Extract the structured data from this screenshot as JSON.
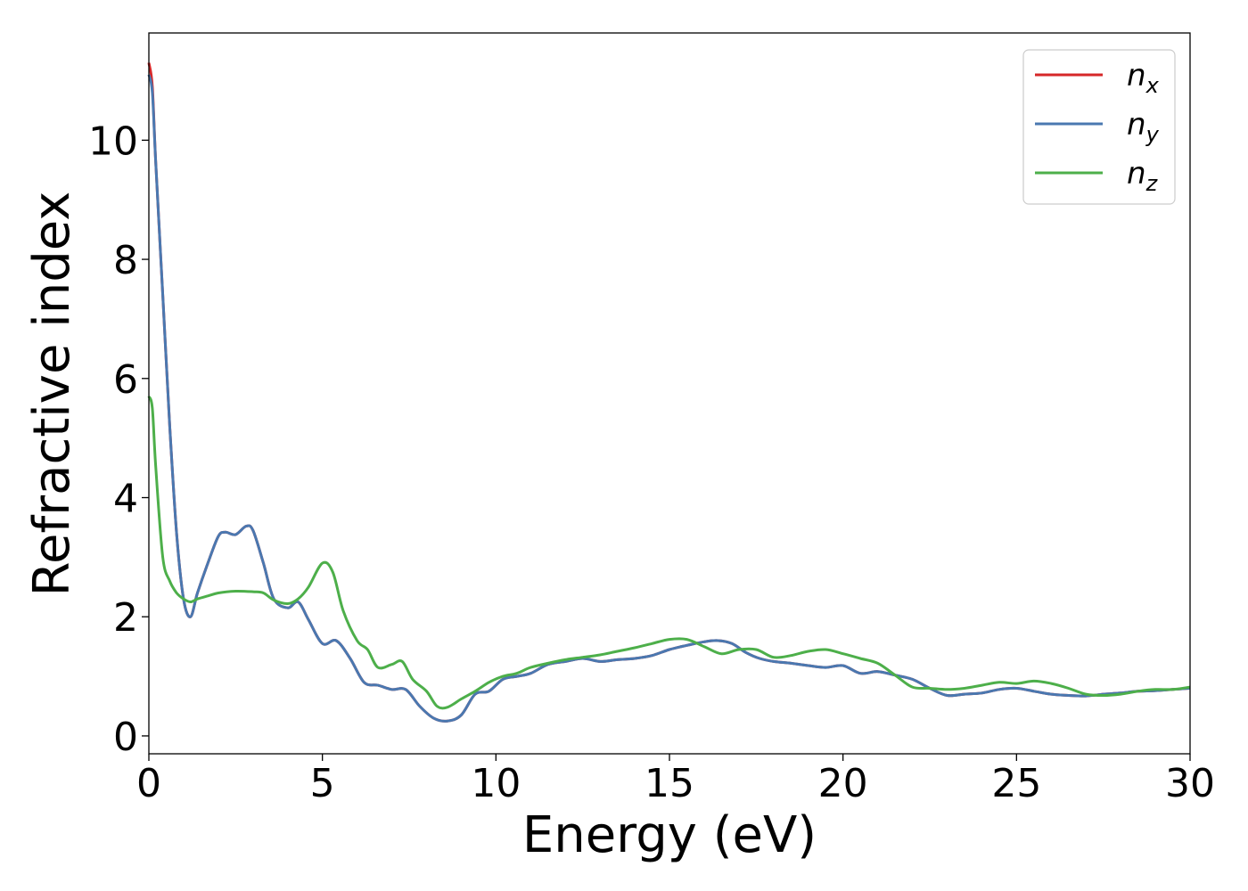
{
  "chart_data": {
    "type": "line",
    "xlabel": "Energy (eV)",
    "ylabel": "Refractive index",
    "xlim": [
      0,
      30
    ],
    "ylim": [
      -0.3,
      11.8
    ],
    "xticks": [
      0,
      5,
      10,
      15,
      20,
      25,
      30
    ],
    "yticks": [
      0,
      2,
      4,
      6,
      8,
      10
    ],
    "xtick_labels": [
      "0",
      "5",
      "10",
      "15",
      "20",
      "25",
      "30"
    ],
    "ytick_labels": [
      "0",
      "2",
      "4",
      "6",
      "8",
      "10"
    ],
    "grid": false,
    "legend_position": "top-right",
    "series": [
      {
        "name": "n",
        "sub": "x",
        "color": "#d62728",
        "x": [
          0,
          0.1,
          0.2,
          0.4,
          0.6,
          0.8,
          1.0,
          1.2,
          1.4,
          1.7,
          2.0,
          2.2,
          2.5,
          2.8,
          3.0,
          3.3,
          3.6,
          4.0,
          4.3,
          4.6,
          5.0,
          5.4,
          5.8,
          6.2,
          6.6,
          7.0,
          7.4,
          7.8,
          8.2,
          8.6,
          9.0,
          9.4,
          9.8,
          10.2,
          10.6,
          11.0,
          11.5,
          12.0,
          12.5,
          13.0,
          13.5,
          14.0,
          14.5,
          15.0,
          15.5,
          16.0,
          16.4,
          16.8,
          17.2,
          17.6,
          18.0,
          18.5,
          19.0,
          19.5,
          20.0,
          20.5,
          21.0,
          21.5,
          22.0,
          22.5,
          23.0,
          23.5,
          24.0,
          24.5,
          25.0,
          25.5,
          26.0,
          26.5,
          27.0,
          27.5,
          28.0,
          28.5,
          29.0,
          29.5,
          30.0
        ],
        "values": [
          11.3,
          10.9,
          9.6,
          7.4,
          5.2,
          3.4,
          2.3,
          2.0,
          2.4,
          2.9,
          3.35,
          3.42,
          3.38,
          3.52,
          3.45,
          2.9,
          2.3,
          2.15,
          2.25,
          1.95,
          1.55,
          1.6,
          1.3,
          0.9,
          0.85,
          0.78,
          0.78,
          0.5,
          0.3,
          0.25,
          0.35,
          0.7,
          0.75,
          0.95,
          1.0,
          1.05,
          1.2,
          1.25,
          1.3,
          1.25,
          1.28,
          1.3,
          1.35,
          1.45,
          1.52,
          1.58,
          1.6,
          1.55,
          1.4,
          1.3,
          1.25,
          1.22,
          1.18,
          1.15,
          1.18,
          1.05,
          1.08,
          1.02,
          0.95,
          0.8,
          0.68,
          0.7,
          0.72,
          0.78,
          0.8,
          0.75,
          0.7,
          0.68,
          0.67,
          0.7,
          0.72,
          0.75,
          0.76,
          0.78,
          0.8
        ]
      },
      {
        "name": "n",
        "sub": "y",
        "color": "#4a78b0",
        "x": [
          0,
          0.1,
          0.2,
          0.4,
          0.6,
          0.8,
          1.0,
          1.2,
          1.4,
          1.7,
          2.0,
          2.2,
          2.5,
          2.8,
          3.0,
          3.3,
          3.6,
          4.0,
          4.3,
          4.6,
          5.0,
          5.4,
          5.8,
          6.2,
          6.6,
          7.0,
          7.4,
          7.8,
          8.2,
          8.6,
          9.0,
          9.4,
          9.8,
          10.2,
          10.6,
          11.0,
          11.5,
          12.0,
          12.5,
          13.0,
          13.5,
          14.0,
          14.5,
          15.0,
          15.5,
          16.0,
          16.4,
          16.8,
          17.2,
          17.6,
          18.0,
          18.5,
          19.0,
          19.5,
          20.0,
          20.5,
          21.0,
          21.5,
          22.0,
          22.5,
          23.0,
          23.5,
          24.0,
          24.5,
          25.0,
          25.5,
          26.0,
          26.5,
          27.0,
          27.5,
          28.0,
          28.5,
          29.0,
          29.5,
          30.0
        ],
        "values": [
          11.1,
          10.8,
          9.6,
          7.4,
          5.2,
          3.4,
          2.3,
          2.0,
          2.4,
          2.9,
          3.35,
          3.42,
          3.38,
          3.52,
          3.45,
          2.9,
          2.3,
          2.15,
          2.25,
          1.95,
          1.55,
          1.6,
          1.3,
          0.9,
          0.85,
          0.78,
          0.78,
          0.5,
          0.3,
          0.25,
          0.35,
          0.7,
          0.75,
          0.95,
          1.0,
          1.05,
          1.2,
          1.25,
          1.3,
          1.25,
          1.28,
          1.3,
          1.35,
          1.45,
          1.52,
          1.58,
          1.6,
          1.55,
          1.4,
          1.3,
          1.25,
          1.22,
          1.18,
          1.15,
          1.18,
          1.05,
          1.08,
          1.02,
          0.95,
          0.8,
          0.68,
          0.7,
          0.72,
          0.78,
          0.8,
          0.75,
          0.7,
          0.68,
          0.67,
          0.7,
          0.72,
          0.75,
          0.76,
          0.78,
          0.8
        ]
      },
      {
        "name": "n",
        "sub": "z",
        "color": "#4daf4a",
        "x": [
          0,
          0.1,
          0.2,
          0.4,
          0.6,
          0.8,
          1.0,
          1.2,
          1.4,
          1.7,
          2.0,
          2.5,
          3.0,
          3.3,
          3.6,
          4.0,
          4.3,
          4.6,
          5.0,
          5.3,
          5.6,
          6.0,
          6.3,
          6.6,
          7.0,
          7.3,
          7.6,
          8.0,
          8.3,
          8.6,
          9.0,
          9.4,
          9.8,
          10.2,
          10.6,
          11.0,
          11.5,
          12.0,
          12.5,
          13.0,
          13.5,
          14.0,
          14.5,
          15.0,
          15.5,
          16.0,
          16.5,
          17.0,
          17.5,
          18.0,
          18.5,
          19.0,
          19.5,
          20.0,
          20.5,
          21.0,
          21.5,
          22.0,
          22.5,
          23.0,
          23.5,
          24.0,
          24.5,
          25.0,
          25.5,
          26.0,
          26.5,
          27.0,
          27.5,
          28.0,
          28.5,
          29.0,
          29.5,
          30.0
        ],
        "values": [
          5.7,
          5.5,
          4.5,
          3.0,
          2.6,
          2.4,
          2.3,
          2.25,
          2.3,
          2.35,
          2.4,
          2.43,
          2.42,
          2.4,
          2.28,
          2.22,
          2.3,
          2.5,
          2.9,
          2.75,
          2.1,
          1.6,
          1.45,
          1.15,
          1.2,
          1.25,
          0.95,
          0.75,
          0.5,
          0.48,
          0.62,
          0.75,
          0.9,
          1.0,
          1.05,
          1.15,
          1.22,
          1.28,
          1.32,
          1.36,
          1.42,
          1.48,
          1.55,
          1.62,
          1.62,
          1.5,
          1.38,
          1.45,
          1.45,
          1.32,
          1.35,
          1.42,
          1.45,
          1.38,
          1.3,
          1.22,
          1.02,
          0.82,
          0.8,
          0.78,
          0.8,
          0.85,
          0.9,
          0.88,
          0.92,
          0.88,
          0.8,
          0.7,
          0.68,
          0.7,
          0.75,
          0.78,
          0.78,
          0.82
        ]
      }
    ]
  }
}
